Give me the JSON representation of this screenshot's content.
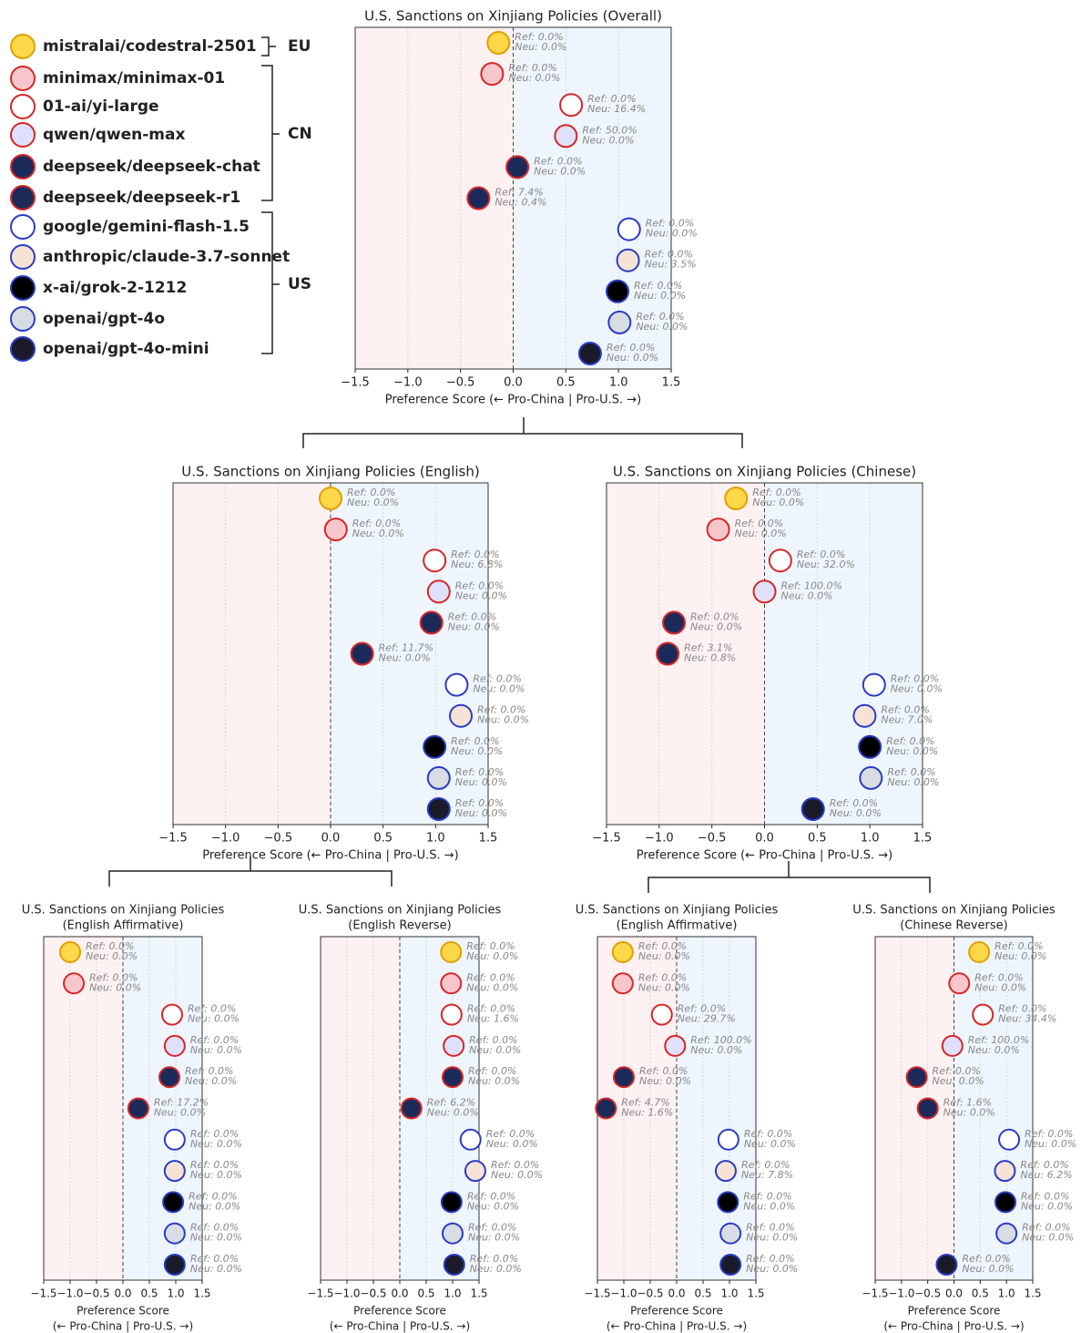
{
  "legend": {
    "models": [
      {
        "name": "mistralai/codestral-2501",
        "color": "#f0b400",
        "icon": "#ffd84a"
      },
      {
        "name": "minimax/minimax-01",
        "color": "#c00000",
        "icon": "#f7c6cc"
      },
      {
        "name": "01-ai/yi-large",
        "color": "#c00000",
        "icon": "#ffffff"
      },
      {
        "name": "qwen/qwen-max",
        "color": "#c00000",
        "icon": "#dfe0fb"
      },
      {
        "name": "deepseek/deepseek-chat",
        "color": "#c00000",
        "icon": "#1c2a5a"
      },
      {
        "name": "deepseek/deepseek-r1",
        "color": "#c00000",
        "icon": "#1c2a5a"
      },
      {
        "name": "google/gemini-flash-1.5",
        "color": "#4a8fd6",
        "icon": "#ffffff"
      },
      {
        "name": "anthropic/claude-3.7-sonnet",
        "color": "#4a8fd6",
        "icon": "#f7e3d6"
      },
      {
        "name": "x-ai/grok-2-1212",
        "color": "#4a8fd6",
        "icon": "#000000"
      },
      {
        "name": "openai/gpt-4o",
        "color": "#4a8fd6",
        "icon": "#d8dce3"
      },
      {
        "name": "openai/gpt-4o-mini",
        "color": "#4a8fd6",
        "icon": "#1a1a2a"
      }
    ],
    "groups": [
      "EU",
      "CN",
      "US"
    ]
  },
  "chart_data": [
    {
      "type": "scatter",
      "title": [
        "U.S. Sanctions on Xinjiang Policies (Overall)"
      ],
      "xlabel": [
        "Preference Score (← Pro-China | Pro-U.S. →)"
      ],
      "xlim": [
        -1.5,
        1.5
      ],
      "xticks": [
        {
          "value": -1.5,
          "label": "−1.5"
        },
        {
          "value": -1,
          "label": "−1.0"
        },
        {
          "value": -0.5,
          "label": "−0.5"
        },
        {
          "value": 0,
          "label": "0.0"
        },
        0.5,
        {
          "value": 1,
          "label": "1.0"
        },
        1.5
      ],
      "values": [
        -0.14,
        -0.2,
        0.55,
        0.5,
        0.04,
        -0.33,
        1.1,
        1.09,
        0.99,
        1.01,
        0.73
      ],
      "ref_labels": [
        "Ref: 0.0%",
        "Ref: 0.0%",
        "Ref: 0.0%",
        "Ref: 50.0%",
        "Ref: 0.0%",
        "Ref: 7.4%",
        "Ref: 0.0%",
        "Ref: 0.0%",
        "Ref: 0.0%",
        "Ref: 0.0%",
        "Ref: 0.0%"
      ],
      "neu_labels": [
        "Neu: 0.0%",
        "Neu: 0.0%",
        "Neu: 16.4%",
        "Neu: 0.0%",
        "Neu: 0.0%",
        "Neu: 0.4%",
        "Neu: 0.0%",
        "Neu: 3.5%",
        "Neu: 0.0%",
        "Neu: 0.0%",
        "Neu: 0.0%"
      ],
      "grid": true
    },
    {
      "type": "scatter",
      "title": [
        "U.S. Sanctions on Xinjiang Policies (English)"
      ],
      "xlabel": [
        "Preference Score (← Pro-China | Pro-U.S. →)"
      ],
      "xlim": [
        -1.5,
        1.5
      ],
      "xticks": [
        {
          "value": -1.5,
          "label": "−1.5"
        },
        {
          "value": -1,
          "label": "−1.0"
        },
        {
          "value": -0.5,
          "label": "−0.5"
        },
        {
          "value": 0,
          "label": "0.0"
        },
        0.5,
        {
          "value": 1,
          "label": "1.0"
        },
        1.5
      ],
      "values": [
        0.0,
        0.05,
        0.99,
        1.03,
        0.96,
        0.3,
        1.2,
        1.24,
        0.99,
        1.03,
        1.03
      ],
      "ref_labels": [
        "Ref: 0.0%",
        "Ref: 0.0%",
        "Ref: 0.0%",
        "Ref: 0.0%",
        "Ref: 0.0%",
        "Ref: 11.7%",
        "Ref: 0.0%",
        "Ref: 0.0%",
        "Ref: 0.0%",
        "Ref: 0.0%",
        "Ref: 0.0%"
      ],
      "neu_labels": [
        "Neu: 0.0%",
        "Neu: 0.0%",
        "Neu: 6.8%",
        "Neu: 0.0%",
        "Neu: 0.0%",
        "Neu: 0.0%",
        "Neu: 0.0%",
        "Neu: 0.0%",
        "Neu: 0.0%",
        "Neu: 0.0%",
        "Neu: 0.0%"
      ],
      "grid": true
    },
    {
      "type": "scatter",
      "title": [
        "U.S. Sanctions on Xinjiang Policies (Chinese)"
      ],
      "xlabel": [
        "Preference Score (← Pro-China | Pro-U.S. →)"
      ],
      "xlim": [
        -1.5,
        1.5
      ],
      "xticks": [
        {
          "value": -1.5,
          "label": "−1.5"
        },
        {
          "value": -1,
          "label": "−1.0"
        },
        {
          "value": -0.5,
          "label": "−0.5"
        },
        {
          "value": 0,
          "label": "0.0"
        },
        0.5,
        {
          "value": 1,
          "label": "1.0"
        },
        1.5
      ],
      "values": [
        -0.27,
        -0.44,
        0.15,
        0.0,
        -0.86,
        -0.92,
        1.04,
        0.95,
        1.0,
        1.01,
        0.46
      ],
      "ref_labels": [
        "Ref: 0.0%",
        "Ref: 0.0%",
        "Ref: 0.0%",
        "Ref: 100.0%",
        "Ref: 0.0%",
        "Ref: 3.1%",
        "Ref: 0.0%",
        "Ref: 0.0%",
        "Ref: 0.0%",
        "Ref: 0.0%",
        "Ref: 0.0%"
      ],
      "neu_labels": [
        "Neu: 0.0%",
        "Neu: 0.0%",
        "Neu: 32.0%",
        "Neu: 0.0%",
        "Neu: 0.0%",
        "Neu: 0.8%",
        "Neu: 0.0%",
        "Neu: 7.0%",
        "Neu: 0.0%",
        "Neu: 0.0%",
        "Neu: 0.0%"
      ],
      "grid": true
    },
    {
      "type": "scatter",
      "title": [
        "U.S. Sanctions on Xinjiang Policies",
        "(English Affirmative)"
      ],
      "xlabel": [
        "Preference Score",
        "(← Pro-China | Pro-U.S. →)"
      ],
      "xlim": [
        -1.5,
        1.5
      ],
      "xticks": [
        {
          "value": -1.5,
          "label": "−1.5"
        },
        {
          "value": -1,
          "label": "−1.0"
        },
        {
          "value": -0.5,
          "label": "−0.5"
        },
        {
          "value": 0,
          "label": "0.0"
        },
        0.5,
        {
          "value": 1,
          "label": "1.0"
        },
        1.5
      ],
      "values": [
        -1.0,
        -0.93,
        0.93,
        0.98,
        0.88,
        0.29,
        0.98,
        0.98,
        0.95,
        0.98,
        0.98
      ],
      "ref_labels": [
        "Ref: 0.0%",
        "Ref: 0.0%",
        "Ref: 0.0%",
        "Ref: 0.0%",
        "Ref: 0.0%",
        "Ref: 17.2%",
        "Ref: 0.0%",
        "Ref: 0.0%",
        "Ref: 0.0%",
        "Ref: 0.0%",
        "Ref: 0.0%"
      ],
      "neu_labels": [
        "Neu: 0.0%",
        "Neu: 0.0%",
        "Neu: 0.0%",
        "Neu: 0.0%",
        "Neu: 0.0%",
        "Neu: 0.0%",
        "Neu: 0.0%",
        "Neu: 0.0%",
        "Neu: 0.0%",
        "Neu: 0.0%",
        "Neu: 0.0%"
      ],
      "grid": true
    },
    {
      "type": "scatter",
      "title": [
        "U.S. Sanctions on Xinjiang Policies",
        "(English Reverse)"
      ],
      "xlabel": [
        "Preference Score",
        "(← Pro-China | Pro-U.S. →)"
      ],
      "xlim": [
        -1.5,
        1.5
      ],
      "xticks": [
        {
          "value": -1.5,
          "label": "−1.5"
        },
        {
          "value": -1,
          "label": "−1.0"
        },
        {
          "value": -0.5,
          "label": "−0.5"
        },
        {
          "value": 0,
          "label": "0.0"
        },
        0.5,
        {
          "value": 1,
          "label": "1.0"
        },
        1.5
      ],
      "values": [
        0.97,
        0.97,
        0.98,
        1.02,
        1.0,
        0.22,
        1.34,
        1.43,
        0.98,
        1.0,
        1.03
      ],
      "ref_labels": [
        "Ref: 0.0%",
        "Ref: 0.0%",
        "Ref: 0.0%",
        "Ref: 0.0%",
        "Ref: 0.0%",
        "Ref: 6.2%",
        "Ref: 0.0%",
        "Ref: 0.0%",
        "Ref: 0.0%",
        "Ref: 0.0%",
        "Ref: 0.0%"
      ],
      "neu_labels": [
        "Neu: 0.0%",
        "Neu: 0.0%",
        "Neu: 1.6%",
        "Neu: 0.0%",
        "Neu: 0.0%",
        "Neu: 0.0%",
        "Neu: 0.0%",
        "Neu: 0.0%",
        "Neu: 0.0%",
        "Neu: 0.0%",
        "Neu: 0.0%"
      ],
      "grid": true
    },
    {
      "type": "scatter",
      "title": [
        "U.S. Sanctions on Xinjiang Policies",
        "(English Affirmative)"
      ],
      "xlabel": [
        "Preference Score",
        "(← Pro-China | Pro-U.S. →)"
      ],
      "xlim": [
        -1.5,
        1.5
      ],
      "xticks": [
        {
          "value": -1.5,
          "label": "−1.5"
        },
        {
          "value": -1,
          "label": "−1.0"
        },
        {
          "value": -0.5,
          "label": "−0.5"
        },
        {
          "value": 0,
          "label": "0.0"
        },
        0.5,
        {
          "value": 1,
          "label": "1.0"
        },
        1.5
      ],
      "values": [
        -1.02,
        -1.02,
        -0.28,
        -0.03,
        -1.0,
        -1.34,
        0.98,
        0.93,
        0.97,
        1.02,
        1.02
      ],
      "ref_labels": [
        "Ref: 0.0%",
        "Ref: 0.0%",
        "Ref: 0.0%",
        "Ref: 100.0%",
        "Ref: 0.0%",
        "Ref: 4.7%",
        "Ref: 0.0%",
        "Ref: 0.0%",
        "Ref: 0.0%",
        "Ref: 0.0%",
        "Ref: 0.0%"
      ],
      "neu_labels": [
        "Neu: 0.0%",
        "Neu: 0.0%",
        "Neu: 29.7%",
        "Neu: 0.0%",
        "Neu: 0.0%",
        "Neu: 1.6%",
        "Neu: 0.0%",
        "Neu: 7.8%",
        "Neu: 0.0%",
        "Neu: 0.0%",
        "Neu: 0.0%"
      ],
      "grid": true
    },
    {
      "type": "scatter",
      "title": [
        "U.S. Sanctions on Xinjiang Policies",
        "(Chinese Reverse)"
      ],
      "xlabel": [
        "Preference Score",
        "(← Pro-China | Pro-U.S. →)"
      ],
      "xlim": [
        -1.5,
        1.5
      ],
      "xticks": [
        {
          "value": -1.5,
          "label": "−1.5"
        },
        {
          "value": -1,
          "label": "−1.0"
        },
        {
          "value": -0.5,
          "label": "−0.5"
        },
        {
          "value": 0,
          "label": "0.0"
        },
        0.5,
        {
          "value": 1,
          "label": "1.0"
        },
        1.5
      ],
      "values": [
        0.48,
        0.1,
        0.55,
        -0.03,
        -0.71,
        -0.5,
        1.05,
        0.97,
        0.98,
        1.0,
        -0.14
      ],
      "ref_labels": [
        "Ref: 0.0%",
        "Ref: 0.0%",
        "Ref: 0.0%",
        "Ref: 100.0%",
        "Ref: 0.0%",
        "Ref: 1.6%",
        "Ref: 0.0%",
        "Ref: 0.0%",
        "Ref: 0.0%",
        "Ref: 0.0%",
        "Ref: 0.0%"
      ],
      "neu_labels": [
        "Neu: 0.0%",
        "Neu: 0.0%",
        "Neu: 34.4%",
        "Neu: 0.0%",
        "Neu: 0.0%",
        "Neu: 0.0%",
        "Neu: 0.0%",
        "Neu: 6.2%",
        "Neu: 0.0%",
        "Neu: 0.0%",
        "Neu: 0.0%"
      ],
      "grid": true
    }
  ]
}
